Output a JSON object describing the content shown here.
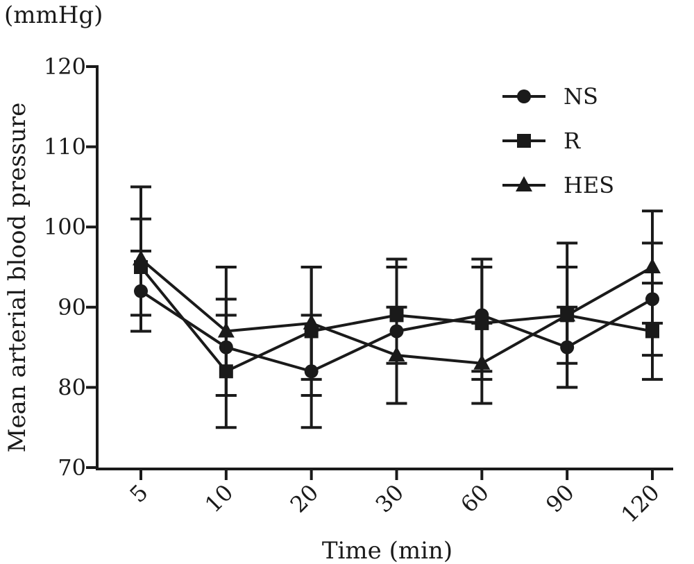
{
  "unit_label": "(mmHg)",
  "chart_data": {
    "type": "line",
    "xlabel": "Time (min)",
    "ylabel": "Mean arterial blood pressure",
    "categories": [
      "5",
      "10",
      "20",
      "30",
      "60",
      "90",
      "120"
    ],
    "ylim": [
      70,
      120
    ],
    "yticks": [
      70,
      80,
      90,
      100,
      110,
      120
    ],
    "grid": false,
    "legend_position": "top-right",
    "series": [
      {
        "name": "NS",
        "marker": "circle",
        "values": [
          92,
          85,
          82,
          87,
          89,
          85,
          91
        ],
        "error": [
          5,
          6,
          7,
          9,
          7,
          5,
          7
        ]
      },
      {
        "name": "R",
        "marker": "square",
        "values": [
          95,
          82,
          87,
          89,
          88,
          89,
          87
        ],
        "error": [
          6,
          7,
          8,
          6,
          7,
          9,
          6
        ]
      },
      {
        "name": "HES",
        "marker": "triangle",
        "values": [
          96,
          87,
          88,
          84,
          83,
          89,
          95
        ],
        "error": [
          9,
          8,
          7,
          6,
          5,
          6,
          7
        ]
      }
    ],
    "colors": {
      "line": "#1a1a1a"
    }
  }
}
